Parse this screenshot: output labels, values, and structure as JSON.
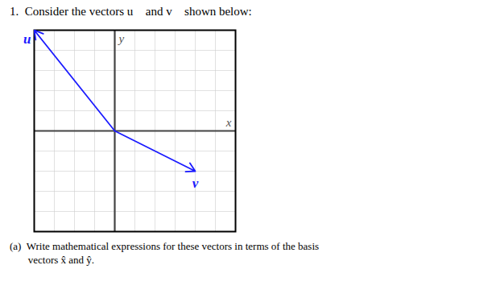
{
  "chart_data": {
    "type": "vector",
    "title": "1.  Consider the vectors u⃗ and v⃗ shown below:",
    "caption": [
      "(a)  Write mathematical expressions for these vectors in terms of the basis",
      "       vectors x̂ and ŷ."
    ],
    "x_label": "x",
    "y_label": "y",
    "xlim": [
      -4,
      6
    ],
    "ylim": [
      -5,
      5
    ],
    "xticks": [
      -4,
      -3,
      -2,
      -1,
      0,
      1,
      2,
      3,
      4,
      5,
      6
    ],
    "yticks": [
      -5,
      -4,
      -3,
      -2,
      -1,
      0,
      1,
      2,
      3,
      4,
      5
    ],
    "grid": true,
    "tick_labels": false,
    "series": [
      {
        "name": "u",
        "color": "#1a1aff",
        "values": [
          -4,
          5
        ]
      },
      {
        "name": "v",
        "color": "#1a1aff",
        "values": [
          4,
          -2
        ]
      }
    ]
  }
}
